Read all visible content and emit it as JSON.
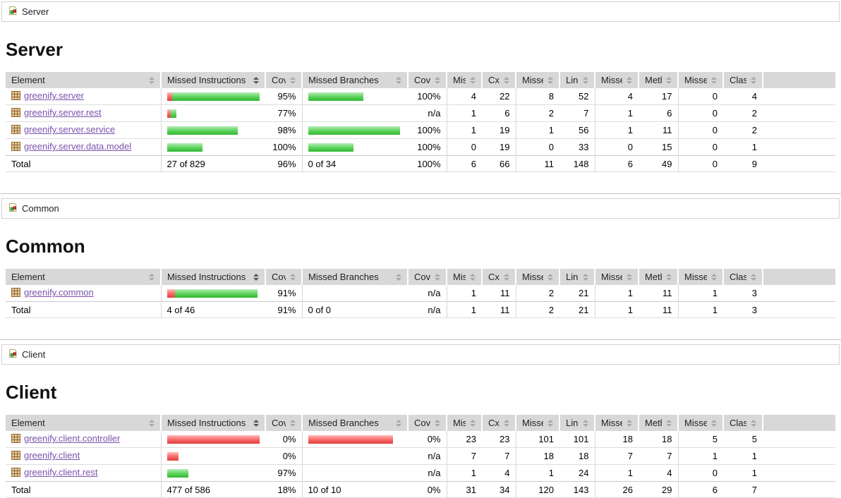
{
  "palette": {
    "bar_green": "#2eb82e",
    "bar_red": "#e33b3b",
    "link_color": "#7b52ab",
    "header_bg": "#d8d8d8"
  },
  "columns": [
    {
      "label": "Element",
      "sorted": false
    },
    {
      "label": "Missed Instructions",
      "sorted": true
    },
    {
      "label": "Cov.",
      "sorted": false
    },
    {
      "label": "Missed Branches",
      "sorted": false
    },
    {
      "label": "Cov.",
      "sorted": false
    },
    {
      "label": "Missed",
      "sorted": false
    },
    {
      "label": "Cxty",
      "sorted": false
    },
    {
      "label": "Missed",
      "sorted": false
    },
    {
      "label": "Lines",
      "sorted": false
    },
    {
      "label": "Missed",
      "sorted": false
    },
    {
      "label": "Methods",
      "sorted": false
    },
    {
      "label": "Missed",
      "sorted": false
    },
    {
      "label": "Classes",
      "sorted": false
    }
  ],
  "sections": [
    {
      "breadcrumb": "Server",
      "title": "Server",
      "rows": [
        {
          "element": "greenify.server",
          "instr_bar": [
            8,
            124
          ],
          "instr_cov": "95%",
          "branch_bar": [
            0,
            78
          ],
          "branch_cov": "100%",
          "values": [
            "4",
            "22",
            "8",
            "52",
            "4",
            "17",
            "0",
            "4"
          ]
        },
        {
          "element": "greenify.server.rest",
          "instr_bar": [
            5,
            8
          ],
          "instr_cov": "77%",
          "branch_bar": [
            0,
            0
          ],
          "branch_cov": "n/a",
          "values": [
            "1",
            "6",
            "2",
            "7",
            "1",
            "6",
            "0",
            "2"
          ]
        },
        {
          "element": "greenify.server.service",
          "instr_bar": [
            0,
            100
          ],
          "instr_cov": "98%",
          "branch_bar": [
            0,
            130
          ],
          "branch_cov": "100%",
          "values": [
            "1",
            "19",
            "1",
            "56",
            "1",
            "11",
            "0",
            "2"
          ]
        },
        {
          "element": "greenify.server.data.model",
          "instr_bar": [
            0,
            50
          ],
          "instr_cov": "100%",
          "branch_bar": [
            0,
            64
          ],
          "branch_cov": "100%",
          "values": [
            "0",
            "19",
            "0",
            "33",
            "0",
            "15",
            "0",
            "1"
          ]
        }
      ],
      "total": {
        "label": "Total",
        "instr": "27 of 829",
        "instr_cov": "96%",
        "branch": "0 of 34",
        "branch_cov": "100%",
        "values": [
          "6",
          "66",
          "11",
          "148",
          "6",
          "49",
          "0",
          "9"
        ]
      }
    },
    {
      "breadcrumb": "Common",
      "title": "Common",
      "rows": [
        {
          "element": "greenify.common",
          "instr_bar": [
            11,
            117
          ],
          "instr_cov": "91%",
          "branch_bar": [
            0,
            0
          ],
          "branch_cov": "n/a",
          "values": [
            "1",
            "11",
            "2",
            "21",
            "1",
            "11",
            "1",
            "3"
          ]
        }
      ],
      "total": {
        "label": "Total",
        "instr": "4 of 46",
        "instr_cov": "91%",
        "branch": "0 of 0",
        "branch_cov": "n/a",
        "values": [
          "1",
          "11",
          "2",
          "21",
          "1",
          "11",
          "1",
          "3"
        ]
      }
    },
    {
      "breadcrumb": "Client",
      "title": "Client",
      "rows": [
        {
          "element": "greenify.client.controller",
          "instr_bar": [
            132,
            0
          ],
          "instr_cov": "0%",
          "branch_bar": [
            120,
            0
          ],
          "branch_cov": "0%",
          "values": [
            "23",
            "23",
            "101",
            "101",
            "18",
            "18",
            "5",
            "5"
          ]
        },
        {
          "element": "greenify.client",
          "instr_bar": [
            16,
            0
          ],
          "instr_cov": "0%",
          "branch_bar": [
            0,
            0
          ],
          "branch_cov": "n/a",
          "values": [
            "7",
            "7",
            "18",
            "18",
            "7",
            "7",
            "1",
            "1"
          ]
        },
        {
          "element": "greenify.client.rest",
          "instr_bar": [
            0,
            30
          ],
          "instr_cov": "97%",
          "branch_bar": [
            0,
            0
          ],
          "branch_cov": "n/a",
          "values": [
            "1",
            "4",
            "1",
            "24",
            "1",
            "4",
            "0",
            "1"
          ]
        }
      ],
      "total": {
        "label": "Total",
        "instr": "477 of 586",
        "instr_cov": "18%",
        "branch": "10 of 10",
        "branch_cov": "0%",
        "values": [
          "31",
          "34",
          "120",
          "143",
          "26",
          "29",
          "6",
          "7"
        ]
      }
    }
  ]
}
